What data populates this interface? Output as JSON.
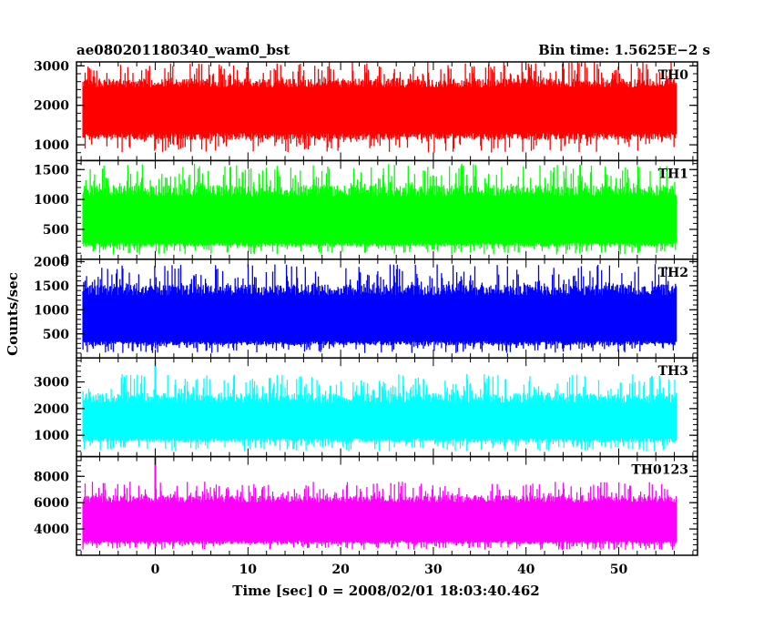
{
  "header": {
    "title": "ae080201180340_wam0_bst",
    "bin_time": "Bin time: 1.5625E−2 s"
  },
  "chart_data": {
    "type": "line",
    "ylabel": "Counts/sec",
    "xlabel": "Time [sec] 0 = 2008/02/01 18:03:40.462",
    "xlim": [
      -8.5,
      58.5
    ],
    "x_data_range": [
      -7.8,
      56.2
    ],
    "xticks": [
      0,
      10,
      20,
      30,
      40,
      50
    ],
    "grid": false,
    "panels": [
      {
        "name": "TH0",
        "color": "#ff0000",
        "ylim": [
          600,
          3100
        ],
        "yticks": [
          1000,
          2000,
          3000
        ],
        "base_low": 1300,
        "base_high": 2450,
        "noise_min": 800,
        "noise_max": 3100,
        "spike": null
      },
      {
        "name": "TH1",
        "color": "#00ff00",
        "ylim": [
          0,
          1650
        ],
        "yticks": [
          0,
          500,
          1000,
          1500
        ],
        "base_low": 280,
        "base_high": 1050,
        "noise_min": 80,
        "noise_max": 1600,
        "spike": null
      },
      {
        "name": "TH2",
        "color": "#0000ff",
        "ylim": [
          0,
          2050
        ],
        "yticks": [
          500,
          1000,
          1500,
          2000
        ],
        "base_low": 350,
        "base_high": 1300,
        "noise_min": 100,
        "noise_max": 1950,
        "spike": null
      },
      {
        "name": "TH3",
        "color": "#00ffff",
        "ylim": [
          200,
          3900
        ],
        "yticks": [
          1000,
          2000,
          3000
        ],
        "base_low": 900,
        "base_high": 2200,
        "noise_min": 400,
        "noise_max": 3300,
        "spike": [
          0,
          3800
        ]
      },
      {
        "name": "TH0123",
        "color": "#ff00ff",
        "ylim": [
          2000,
          9500
        ],
        "yticks": [
          4000,
          6000,
          8000
        ],
        "base_low": 3100,
        "base_high": 6000,
        "noise_min": 2400,
        "noise_max": 7600,
        "spike": [
          0,
          9500
        ]
      }
    ]
  }
}
